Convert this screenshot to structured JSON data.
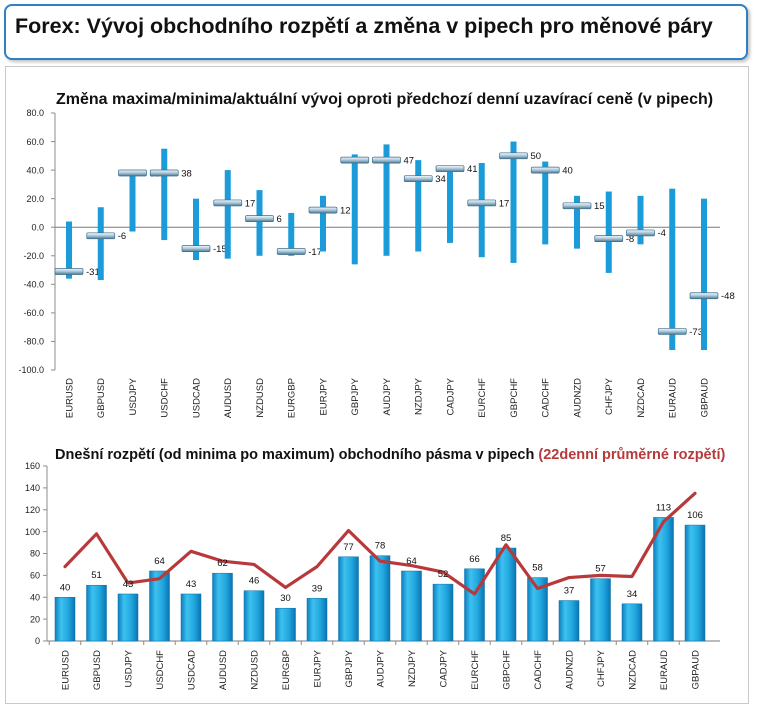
{
  "header": {
    "title": "Forex: Vývoj obchodního rozpětí a změna v pipech pro měnové páry"
  },
  "colors": {
    "header_border": "#2f80c4",
    "range_bar": "#1b9bd7",
    "bar": "#22a8e0",
    "avg_line": "#b8393b"
  },
  "chart_data": [
    {
      "type": "bar",
      "title": "Změna maxima/minima/aktuální vývoj oproti předchozí denní uzavírací ceně (v pipech)",
      "categories": [
        "EURUSD",
        "GBPUSD",
        "USDJPY",
        "USDCHF",
        "USDCAD",
        "AUDUSD",
        "NZDUSD",
        "EURGBP",
        "EURJPY",
        "GBPJPY",
        "AUDJPY",
        "NZDJPY",
        "CADJPY",
        "EURCHF",
        "GBPCHF",
        "CADCHF",
        "AUDNZD",
        "CHFJPY",
        "NZDCAD",
        "EURAUD",
        "GBPAUD"
      ],
      "high": [
        4,
        14,
        40,
        55,
        20,
        40,
        26,
        10,
        22,
        51,
        58,
        47,
        41,
        45,
        60,
        46,
        22,
        25,
        22,
        27,
        20
      ],
      "low": [
        -36,
        -37,
        -3,
        -9,
        -23,
        -22,
        -20,
        -20,
        -17,
        -26,
        -20,
        -17,
        -11,
        -21,
        -25,
        -12,
        -15,
        -32,
        -12,
        -86,
        -86
      ],
      "current": [
        -31,
        -6,
        38,
        38,
        -15,
        17,
        6,
        -17,
        12,
        47,
        47,
        34,
        41,
        17,
        50,
        40,
        15,
        -8,
        -4,
        -73,
        -48
      ],
      "yticks": [
        "80.0",
        "60.0",
        "40.0",
        "20.0",
        "0.0",
        "-20.0",
        "-40.0",
        "-60.0",
        "-80.0",
        "-100.0"
      ],
      "ylim": [
        -100,
        80
      ],
      "grid": false
    },
    {
      "type": "bar",
      "title": "Dnešní rozpětí (od minima po maximum) obchodního pásma v pipech",
      "categories": [
        "EURUSD",
        "GBPUSD",
        "USDJPY",
        "USDCHF",
        "USDCAD",
        "AUDUSD",
        "NZDUSD",
        "EURGBP",
        "EURJPY",
        "GBPJPY",
        "AUDJPY",
        "NZDJPY",
        "CADJPY",
        "EURCHF",
        "GBPCHF",
        "CADCHF",
        "AUDNZD",
        "CHFJPY",
        "NZDCAD",
        "EURAUD",
        "GBPAUD"
      ],
      "series": [
        {
          "type": "bar",
          "values": [
            40,
            51,
            43,
            64,
            43,
            62,
            46,
            30,
            39,
            77,
            78,
            64,
            52,
            66,
            85,
            58,
            37,
            57,
            34,
            113,
            106
          ]
        },
        {
          "type": "line",
          "name": "(22denní průměrné rozpětí)",
          "values": [
            68,
            98,
            53,
            57,
            82,
            73,
            70,
            49,
            68,
            101,
            73,
            69,
            63,
            43,
            88,
            48,
            58,
            60,
            59,
            109,
            135
          ]
        }
      ],
      "yticks": [
        "160",
        "140",
        "120",
        "100",
        "80",
        "60",
        "40",
        "20",
        "0"
      ],
      "ylim": [
        0,
        160
      ],
      "grid": false
    }
  ]
}
